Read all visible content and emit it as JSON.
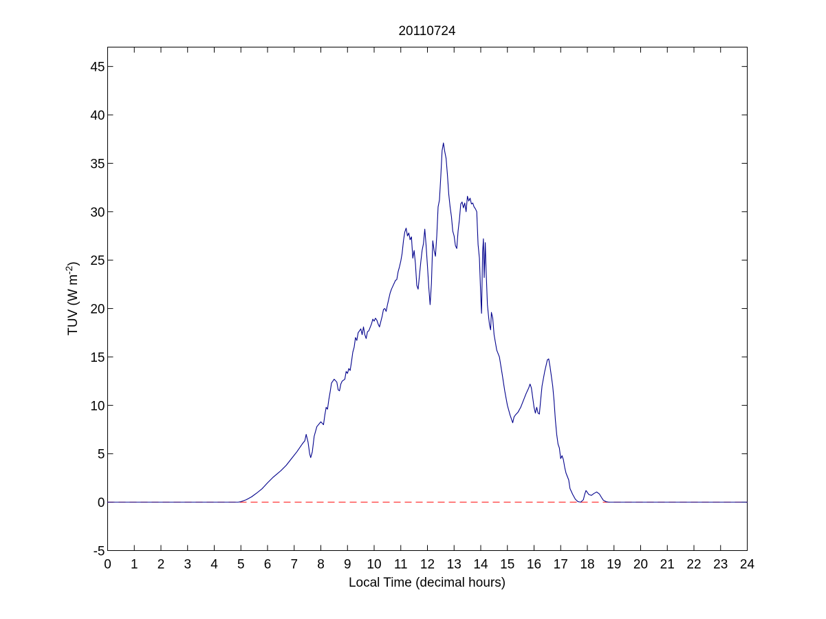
{
  "window": {
    "title": "20110724"
  },
  "chart_data": {
    "type": "line",
    "title": "20110724",
    "xlabel": "Local Time (decimal hours)",
    "ylabel_main": "TUV (W m",
    "ylabel_superscript": "-2",
    "ylabel_suffix": ")",
    "xlim": [
      0,
      24
    ],
    "ylim": [
      -5,
      47
    ],
    "x_ticks": [
      0,
      1,
      2,
      3,
      4,
      5,
      6,
      7,
      8,
      9,
      10,
      11,
      12,
      13,
      14,
      15,
      16,
      17,
      18,
      19,
      20,
      21,
      22,
      23,
      24
    ],
    "y_ticks": [
      -5,
      0,
      5,
      10,
      15,
      20,
      25,
      30,
      35,
      40,
      45
    ],
    "grid": false,
    "legend": "none",
    "series": [
      {
        "color": "#00008b",
        "points": [
          [
            0,
            0
          ],
          [
            4.9,
            0
          ],
          [
            5.0,
            0.05
          ],
          [
            5.2,
            0.25
          ],
          [
            5.4,
            0.55
          ],
          [
            5.6,
            0.95
          ],
          [
            5.8,
            1.4
          ],
          [
            6.0,
            2.0
          ],
          [
            6.2,
            2.55
          ],
          [
            6.35,
            2.9
          ],
          [
            6.5,
            3.25
          ],
          [
            6.7,
            3.8
          ],
          [
            6.9,
            4.5
          ],
          [
            7.1,
            5.2
          ],
          [
            7.3,
            6.0
          ],
          [
            7.4,
            6.35
          ],
          [
            7.45,
            7.0
          ],
          [
            7.52,
            6.2
          ],
          [
            7.58,
            5.0
          ],
          [
            7.62,
            4.6
          ],
          [
            7.68,
            5.2
          ],
          [
            7.75,
            6.8
          ],
          [
            7.85,
            7.8
          ],
          [
            8.0,
            8.3
          ],
          [
            8.1,
            8.0
          ],
          [
            8.15,
            9.0
          ],
          [
            8.2,
            9.8
          ],
          [
            8.25,
            9.6
          ],
          [
            8.3,
            10.6
          ],
          [
            8.35,
            11.4
          ],
          [
            8.4,
            12.3
          ],
          [
            8.5,
            12.7
          ],
          [
            8.6,
            12.4
          ],
          [
            8.65,
            11.6
          ],
          [
            8.7,
            11.5
          ],
          [
            8.75,
            12.2
          ],
          [
            8.8,
            12.5
          ],
          [
            8.9,
            12.7
          ],
          [
            8.95,
            13.5
          ],
          [
            9.0,
            13.3
          ],
          [
            9.05,
            13.8
          ],
          [
            9.1,
            13.6
          ],
          [
            9.15,
            14.5
          ],
          [
            9.2,
            15.5
          ],
          [
            9.25,
            16.0
          ],
          [
            9.3,
            17.0
          ],
          [
            9.35,
            16.7
          ],
          [
            9.4,
            17.5
          ],
          [
            9.5,
            17.9
          ],
          [
            9.55,
            17.3
          ],
          [
            9.6,
            18.1
          ],
          [
            9.65,
            17.3
          ],
          [
            9.7,
            16.9
          ],
          [
            9.75,
            17.6
          ],
          [
            9.8,
            17.7
          ],
          [
            9.9,
            18.4
          ],
          [
            9.95,
            18.9
          ],
          [
            10.0,
            18.7
          ],
          [
            10.05,
            19.0
          ],
          [
            10.1,
            18.8
          ],
          [
            10.15,
            18.4
          ],
          [
            10.2,
            18.1
          ],
          [
            10.3,
            19.2
          ],
          [
            10.35,
            19.9
          ],
          [
            10.4,
            20.0
          ],
          [
            10.45,
            19.7
          ],
          [
            10.5,
            20.4
          ],
          [
            10.55,
            21.0
          ],
          [
            10.6,
            21.6
          ],
          [
            10.65,
            22.0
          ],
          [
            10.7,
            22.3
          ],
          [
            10.8,
            22.9
          ],
          [
            10.85,
            23.0
          ],
          [
            10.9,
            23.8
          ],
          [
            10.95,
            24.3
          ],
          [
            11.0,
            24.9
          ],
          [
            11.05,
            25.7
          ],
          [
            11.1,
            27.0
          ],
          [
            11.15,
            27.9
          ],
          [
            11.2,
            28.3
          ],
          [
            11.25,
            27.5
          ],
          [
            11.3,
            27.8
          ],
          [
            11.35,
            27.1
          ],
          [
            11.4,
            27.4
          ],
          [
            11.45,
            25.2
          ],
          [
            11.5,
            26.0
          ],
          [
            11.55,
            24.6
          ],
          [
            11.6,
            22.4
          ],
          [
            11.65,
            22.0
          ],
          [
            11.7,
            23.4
          ],
          [
            11.75,
            24.8
          ],
          [
            11.8,
            26.0
          ],
          [
            11.85,
            26.7
          ],
          [
            11.9,
            28.2
          ],
          [
            11.95,
            26.5
          ],
          [
            12.0,
            24.4
          ],
          [
            12.05,
            22.2
          ],
          [
            12.1,
            20.4
          ],
          [
            12.15,
            22.6
          ],
          [
            12.2,
            27.0
          ],
          [
            12.25,
            26.0
          ],
          [
            12.3,
            25.4
          ],
          [
            12.35,
            27.5
          ],
          [
            12.4,
            30.5
          ],
          [
            12.45,
            31.2
          ],
          [
            12.5,
            33.6
          ],
          [
            12.55,
            36.3
          ],
          [
            12.6,
            37.1
          ],
          [
            12.65,
            36.2
          ],
          [
            12.7,
            35.5
          ],
          [
            12.75,
            33.8
          ],
          [
            12.8,
            31.8
          ],
          [
            12.85,
            30.5
          ],
          [
            12.9,
            29.5
          ],
          [
            12.95,
            28.0
          ],
          [
            13.0,
            27.5
          ],
          [
            13.05,
            26.5
          ],
          [
            13.1,
            26.2
          ],
          [
            13.15,
            28.0
          ],
          [
            13.2,
            29.2
          ],
          [
            13.25,
            30.8
          ],
          [
            13.3,
            31.0
          ],
          [
            13.35,
            30.4
          ],
          [
            13.4,
            30.9
          ],
          [
            13.45,
            30.0
          ],
          [
            13.5,
            31.6
          ],
          [
            13.55,
            31.1
          ],
          [
            13.6,
            31.4
          ],
          [
            13.65,
            30.8
          ],
          [
            13.7,
            30.9
          ],
          [
            13.75,
            30.5
          ],
          [
            13.8,
            30.3
          ],
          [
            13.85,
            30.0
          ],
          [
            13.9,
            26.6
          ],
          [
            13.95,
            25.2
          ],
          [
            14.0,
            21.3
          ],
          [
            14.03,
            19.5
          ],
          [
            14.07,
            25.8
          ],
          [
            14.1,
            27.2
          ],
          [
            14.13,
            23.2
          ],
          [
            14.17,
            26.8
          ],
          [
            14.2,
            24.0
          ],
          [
            14.25,
            20.4
          ],
          [
            14.3,
            19.0
          ],
          [
            14.33,
            18.3
          ],
          [
            14.37,
            17.8
          ],
          [
            14.4,
            19.6
          ],
          [
            14.45,
            19.0
          ],
          [
            14.5,
            17.3
          ],
          [
            14.6,
            15.7
          ],
          [
            14.7,
            15.0
          ],
          [
            14.8,
            13.3
          ],
          [
            14.9,
            11.5
          ],
          [
            15.0,
            10.0
          ],
          [
            15.1,
            9.0
          ],
          [
            15.2,
            8.2
          ],
          [
            15.25,
            8.8
          ],
          [
            15.3,
            9.0
          ],
          [
            15.4,
            9.3
          ],
          [
            15.5,
            9.8
          ],
          [
            15.6,
            10.5
          ],
          [
            15.7,
            11.2
          ],
          [
            15.8,
            11.8
          ],
          [
            15.85,
            12.2
          ],
          [
            15.9,
            11.8
          ],
          [
            15.95,
            10.8
          ],
          [
            16.0,
            9.8
          ],
          [
            16.05,
            9.2
          ],
          [
            16.1,
            9.8
          ],
          [
            16.15,
            9.2
          ],
          [
            16.2,
            9.1
          ],
          [
            16.25,
            10.6
          ],
          [
            16.3,
            12.0
          ],
          [
            16.4,
            13.5
          ],
          [
            16.5,
            14.7
          ],
          [
            16.55,
            14.8
          ],
          [
            16.6,
            14.0
          ],
          [
            16.7,
            12.0
          ],
          [
            16.75,
            10.5
          ],
          [
            16.8,
            8.5
          ],
          [
            16.85,
            7.0
          ],
          [
            16.9,
            6.0
          ],
          [
            16.95,
            5.6
          ],
          [
            17.0,
            4.5
          ],
          [
            17.05,
            4.8
          ],
          [
            17.1,
            4.4
          ],
          [
            17.15,
            3.6
          ],
          [
            17.2,
            3.0
          ],
          [
            17.3,
            2.3
          ],
          [
            17.35,
            1.4
          ],
          [
            17.45,
            0.8
          ],
          [
            17.55,
            0.3
          ],
          [
            17.65,
            0.05
          ],
          [
            17.75,
            0.0
          ],
          [
            17.85,
            0.25
          ],
          [
            17.9,
            0.8
          ],
          [
            17.95,
            1.2
          ],
          [
            18.05,
            0.8
          ],
          [
            18.15,
            0.7
          ],
          [
            18.25,
            0.9
          ],
          [
            18.35,
            1.05
          ],
          [
            18.45,
            0.85
          ],
          [
            18.55,
            0.4
          ],
          [
            18.6,
            0.2
          ],
          [
            18.7,
            0.05
          ],
          [
            18.8,
            0
          ],
          [
            24,
            0
          ]
        ]
      }
    ],
    "reference_line": {
      "y": 0,
      "style": "dashed",
      "color": "#ff0000"
    }
  }
}
